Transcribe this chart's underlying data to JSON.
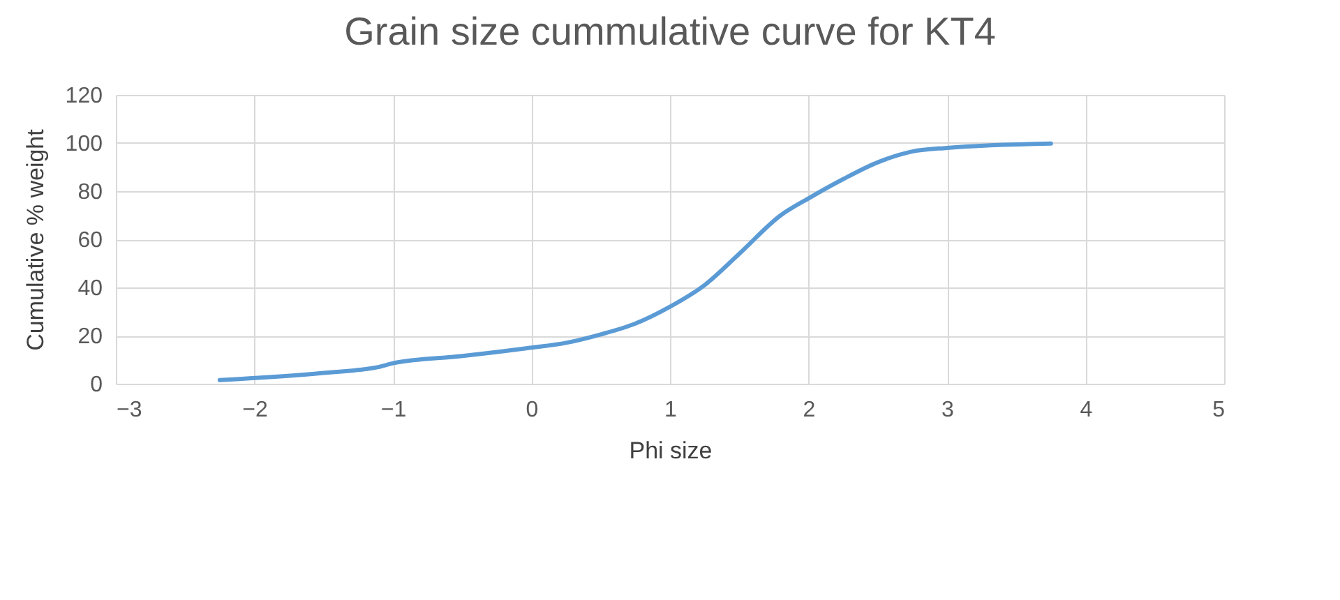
{
  "chart_data": {
    "type": "line",
    "title": "Grain size cummulative curve for KT4",
    "xlabel": "Phi size",
    "ylabel": "Cumulative % weight",
    "x": [
      -2.25,
      -1.5,
      -1.1,
      -1,
      -0.5,
      0,
      0.25,
      0.5,
      0.75,
      1,
      1.25,
      1.5,
      1.8,
      2,
      2.25,
      2.5,
      2.75,
      3,
      3.75
    ],
    "series": [
      {
        "color": "#5b9bd5",
        "values": [
          1.5,
          4.5,
          7,
          8.5,
          11.5,
          15,
          17,
          20.5,
          25,
          32,
          41,
          54,
          70,
          77,
          85,
          92,
          96.5,
          98,
          99.8
        ]
      }
    ],
    "xlim": [
      -3,
      5
    ],
    "xticks": [
      -3,
      -2,
      -1,
      0,
      1,
      2,
      3,
      4,
      5
    ],
    "ylim": [
      0,
      120
    ],
    "yticks": [
      0,
      20,
      40,
      60,
      80,
      100,
      120
    ],
    "grid": true,
    "marker": "none",
    "line_style": "solid"
  }
}
